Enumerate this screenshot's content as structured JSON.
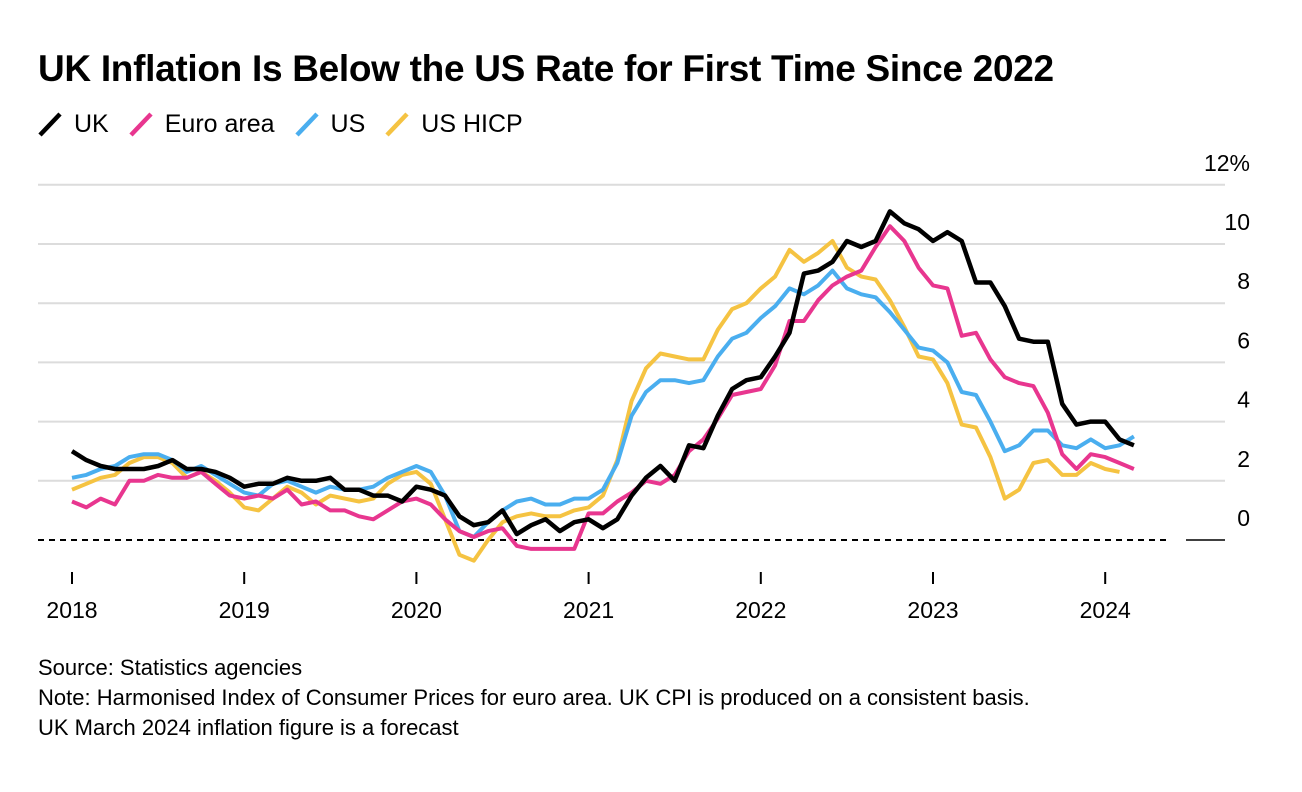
{
  "chart_data": {
    "type": "line",
    "title": "UK Inflation Is Below the US Rate for First Time Since 2022",
    "x_start": "2018-01",
    "x_end": "2024-03",
    "x_ticks": [
      "2018",
      "2019",
      "2020",
      "2021",
      "2022",
      "2023",
      "2024"
    ],
    "y_ticks": [
      "0",
      "2",
      "4",
      "6",
      "8",
      "10",
      "12%"
    ],
    "ylim": [
      -1,
      12
    ],
    "zero_line": "dashed",
    "grid": true,
    "legend_position": "top-left",
    "series": [
      {
        "name": "UK",
        "color": "#000000",
        "values": [
          3.0,
          2.7,
          2.5,
          2.4,
          2.4,
          2.4,
          2.5,
          2.7,
          2.4,
          2.4,
          2.3,
          2.1,
          1.8,
          1.9,
          1.9,
          2.1,
          2.0,
          2.0,
          2.1,
          1.7,
          1.7,
          1.5,
          1.5,
          1.3,
          1.8,
          1.7,
          1.5,
          0.8,
          0.5,
          0.6,
          1.0,
          0.2,
          0.5,
          0.7,
          0.3,
          0.6,
          0.7,
          0.4,
          0.7,
          1.5,
          2.1,
          2.5,
          2.0,
          3.2,
          3.1,
          4.2,
          5.1,
          5.4,
          5.5,
          6.2,
          7.0,
          9.0,
          9.1,
          9.4,
          10.1,
          9.9,
          10.1,
          11.1,
          10.7,
          10.5,
          10.1,
          10.4,
          10.1,
          8.7,
          8.7,
          7.9,
          6.8,
          6.7,
          6.7,
          4.6,
          3.9,
          4.0,
          4.0,
          3.4,
          3.2
        ]
      },
      {
        "name": "Euro area",
        "color": "#e8368f",
        "values": [
          1.3,
          1.1,
          1.4,
          1.2,
          2.0,
          2.0,
          2.2,
          2.1,
          2.1,
          2.3,
          1.9,
          1.5,
          1.4,
          1.5,
          1.4,
          1.7,
          1.2,
          1.3,
          1.0,
          1.0,
          0.8,
          0.7,
          1.0,
          1.3,
          1.4,
          1.2,
          0.7,
          0.3,
          0.1,
          0.3,
          0.4,
          -0.2,
          -0.3,
          -0.3,
          -0.3,
          -0.3,
          0.9,
          0.9,
          1.3,
          1.6,
          2.0,
          1.9,
          2.2,
          3.0,
          3.4,
          4.1,
          4.9,
          5.0,
          5.1,
          5.9,
          7.4,
          7.4,
          8.1,
          8.6,
          8.9,
          9.1,
          9.9,
          10.6,
          10.1,
          9.2,
          8.6,
          8.5,
          6.9,
          7.0,
          6.1,
          5.5,
          5.3,
          5.2,
          4.3,
          2.9,
          2.4,
          2.9,
          2.8,
          2.6,
          2.4
        ]
      },
      {
        "name": "US",
        "color": "#4aaeef",
        "values": [
          2.1,
          2.2,
          2.4,
          2.5,
          2.8,
          2.9,
          2.9,
          2.7,
          2.3,
          2.5,
          2.2,
          1.9,
          1.6,
          1.5,
          1.9,
          2.0,
          1.8,
          1.6,
          1.8,
          1.7,
          1.7,
          1.8,
          2.1,
          2.3,
          2.5,
          2.3,
          1.5,
          0.3,
          0.1,
          0.6,
          1.0,
          1.3,
          1.4,
          1.2,
          1.2,
          1.4,
          1.4,
          1.7,
          2.6,
          4.2,
          5.0,
          5.4,
          5.4,
          5.3,
          5.4,
          6.2,
          6.8,
          7.0,
          7.5,
          7.9,
          8.5,
          8.3,
          8.6,
          9.1,
          8.5,
          8.3,
          8.2,
          7.7,
          7.1,
          6.5,
          6.4,
          6.0,
          5.0,
          4.9,
          4.0,
          3.0,
          3.2,
          3.7,
          3.7,
          3.2,
          3.1,
          3.4,
          3.1,
          3.2,
          3.5
        ]
      },
      {
        "name": "US HICP",
        "color": "#f5c342",
        "values": [
          1.7,
          1.9,
          2.1,
          2.2,
          2.6,
          2.8,
          2.8,
          2.6,
          2.1,
          2.3,
          2.0,
          1.6,
          1.1,
          1.0,
          1.4,
          1.8,
          1.6,
          1.2,
          1.5,
          1.4,
          1.3,
          1.4,
          1.9,
          2.2,
          2.3,
          1.9,
          0.7,
          -0.5,
          -0.7,
          0.0,
          0.6,
          0.8,
          0.9,
          0.8,
          0.8,
          1.0,
          1.1,
          1.5,
          2.7,
          4.7,
          5.8,
          6.3,
          6.2,
          6.1,
          6.1,
          7.1,
          7.8,
          8.0,
          8.5,
          8.9,
          9.8,
          9.4,
          9.7,
          10.1,
          9.2,
          8.9,
          8.8,
          8.1,
          7.2,
          6.2,
          6.1,
          5.3,
          3.9,
          3.8,
          2.8,
          1.4,
          1.7,
          2.6,
          2.7,
          2.2,
          2.2,
          2.6,
          2.4,
          2.3
        ]
      }
    ]
  },
  "notes": {
    "source": "Source: Statistics agencies",
    "note_line1": "Note: Harmonised Index of Consumer Prices for euro area. UK CPI is produced on a consistent basis.",
    "note_line2": "UK March 2024 inflation figure is a forecast"
  }
}
